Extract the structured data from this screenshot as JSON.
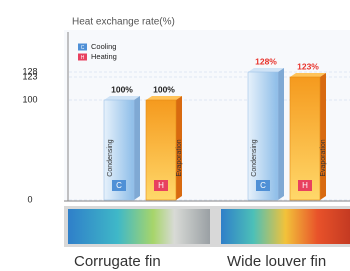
{
  "chart_data": {
    "type": "bar",
    "title": "Heat exchange rate(%)",
    "categories": [
      "Corrugate fin",
      "Wide louver fin"
    ],
    "series": [
      {
        "name": "Cooling",
        "badge": "C",
        "inner_label": "Condensing",
        "color": "#4f90d6",
        "values": [
          100,
          128
        ],
        "value_labels": [
          "100%",
          "128%"
        ],
        "value_label_colors": [
          "#222222",
          "#e8312a"
        ]
      },
      {
        "name": "Heating",
        "badge": "H",
        "inner_label": "Evaporation",
        "color": "#e8415f",
        "values": [
          100,
          123
        ],
        "value_labels": [
          "100%",
          "123%"
        ],
        "value_label_colors": [
          "#222222",
          "#e8312a"
        ]
      }
    ],
    "ylim": [
      0,
      160
    ],
    "yticks": [
      0,
      100,
      123,
      128
    ],
    "grid": true
  }
}
